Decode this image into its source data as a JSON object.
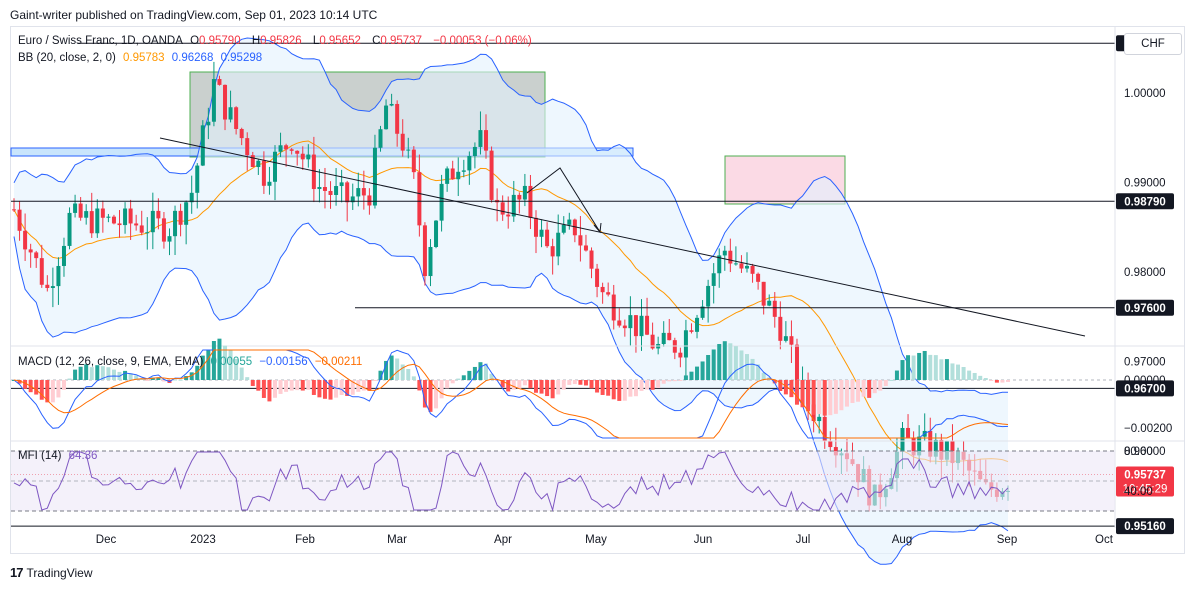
{
  "publisher_line": "Gaint-writer published on TradingView.com, Sep 01, 2023 10:14 UTC",
  "currency_button": "CHF",
  "footer_brand": "TradingView",
  "footer_logo": "17",
  "legend": {
    "symbol": "Euro / Swiss Franc, 1D, OANDA",
    "o_label": "O",
    "o": "0.95790",
    "h_label": "H",
    "h": "0.95826",
    "l_label": "L",
    "l": "0.95652",
    "c_label": "C",
    "c": "0.95737",
    "change": "−0.00053 (−0.06%)",
    "bb_label": "BB (20, close, 2, 0)",
    "bb_basis": "0.95783",
    "bb_upper": "0.96268",
    "bb_lower": "0.95298",
    "macd_label": "MACD (12, 26, close, 9, EMA, EMA)",
    "macd_hist": "0.00055",
    "macd_line": "−0.00156",
    "macd_signal": "−0.00211",
    "mfi_label": "MFI (14)",
    "mfi_value": "64.36"
  },
  "colors": {
    "up": "#089981",
    "down": "#f23645",
    "up_light": "#b2dfdb",
    "down_light": "#ffcdd2",
    "bb_basis": "#ff9800",
    "bb_band": "#2962ff",
    "bb_fill": "#e3f2fd",
    "macd_line": "#2962ff",
    "signal_line": "#ff6d00",
    "mfi_line": "#7e57c2",
    "mfi_fill": "#ede7f6",
    "price_tag": "#f23645"
  },
  "chart_data": {
    "type": "candlestick",
    "price_axis": {
      "ticks": [
        "1.00000",
        "0.99000",
        "0.98000",
        "0.97000",
        "0.96000"
      ]
    },
    "macd_axis": {
      "ticks": [
        "0.00000",
        "−0.00200"
      ]
    },
    "mfi_axis": {
      "ticks": [
        "80.00",
        "40.00"
      ]
    },
    "time_axis": [
      "Dec",
      "2023",
      "Feb",
      "Mar",
      "Apr",
      "May",
      "Jun",
      "Jul",
      "Aug",
      "Sep",
      "Oct"
    ],
    "horizontal_levels": [
      {
        "value": 1.00556,
        "label": "1.00556"
      },
      {
        "value": 0.9879,
        "label": "0.98790"
      },
      {
        "value": 0.976,
        "label": "0.97600"
      },
      {
        "value": 0.967,
        "label": "0.96700"
      },
      {
        "value": 0.9516,
        "label": "0.95160"
      }
    ],
    "last_price": {
      "value": 0.95737,
      "label": "0.95737",
      "countdown": "10:45:29"
    }
  }
}
